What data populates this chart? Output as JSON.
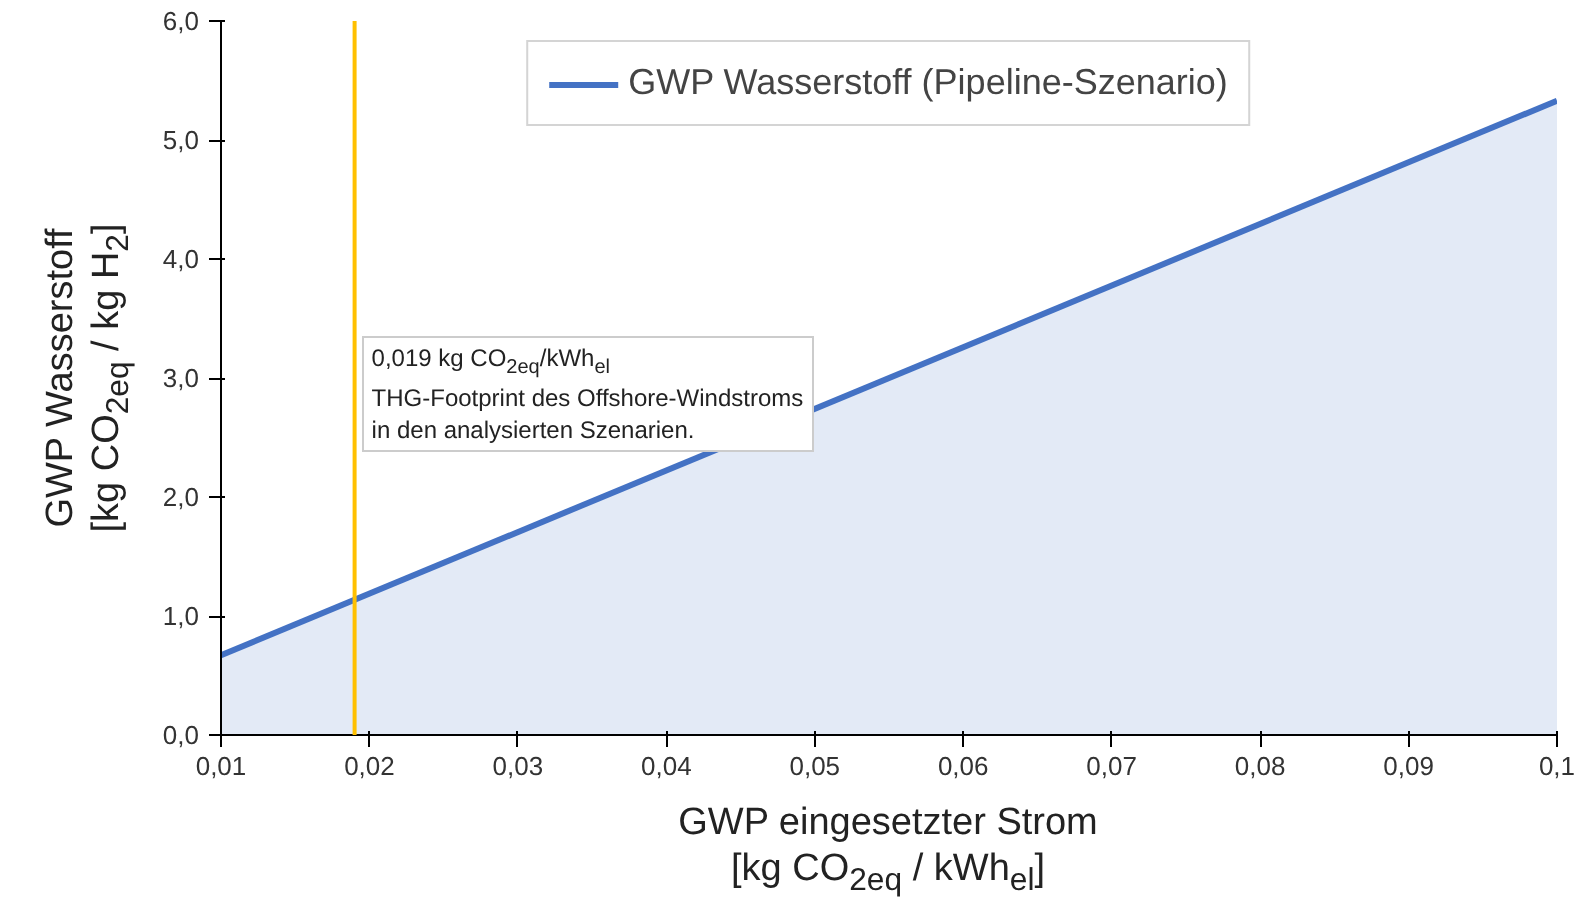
{
  "chart_data": {
    "type": "area",
    "x": [
      0.01,
      0.1
    ],
    "series": [
      {
        "name": "GWP Wasserstoff (Pipeline-Szenario)",
        "color": "#4472c4",
        "values": [
          0.67,
          5.33
        ]
      }
    ],
    "xlabel": "GWP eingesetzter Strom\n[kg CO$_{2eq}$ / kWh$_{el}$]",
    "ylabel": "GWP Wasserstoff\n[kg CO$_{2eq}$ / kg H$_{2}$]",
    "xlim": [
      0.01,
      0.1
    ],
    "ylim": [
      0,
      6
    ],
    "xticks": [
      {
        "value": 0.01,
        "label": "0,01"
      },
      {
        "value": 0.02,
        "label": "0,02"
      },
      {
        "value": 0.03,
        "label": "0,03"
      },
      {
        "value": 0.04,
        "label": "0,04"
      },
      {
        "value": 0.05,
        "label": "0,05"
      },
      {
        "value": 0.06,
        "label": "0,06"
      },
      {
        "value": 0.07,
        "label": "0,07"
      },
      {
        "value": 0.08,
        "label": "0,08"
      },
      {
        "value": 0.09,
        "label": "0,09"
      },
      {
        "value": 0.1,
        "label": "0,1"
      }
    ],
    "yticks": [
      {
        "value": 0,
        "label": "0,0"
      },
      {
        "value": 1,
        "label": "1,0"
      },
      {
        "value": 2,
        "label": "2,0"
      },
      {
        "value": 3,
        "label": "3,0"
      },
      {
        "value": 4,
        "label": "4,0"
      },
      {
        "value": 5,
        "label": "5,0"
      },
      {
        "value": 6,
        "label": "6,0"
      }
    ],
    "ref_lines": [
      {
        "axis": "x",
        "value": 0.019,
        "color": "#ffc000",
        "label": "0,019 kg CO$_{2eq}$/kWh$_{el}$\nTHG-Footprint des Offshore-Windstroms\nin den analysierten Szenarien."
      }
    ],
    "legend": "top",
    "grid": false
  }
}
